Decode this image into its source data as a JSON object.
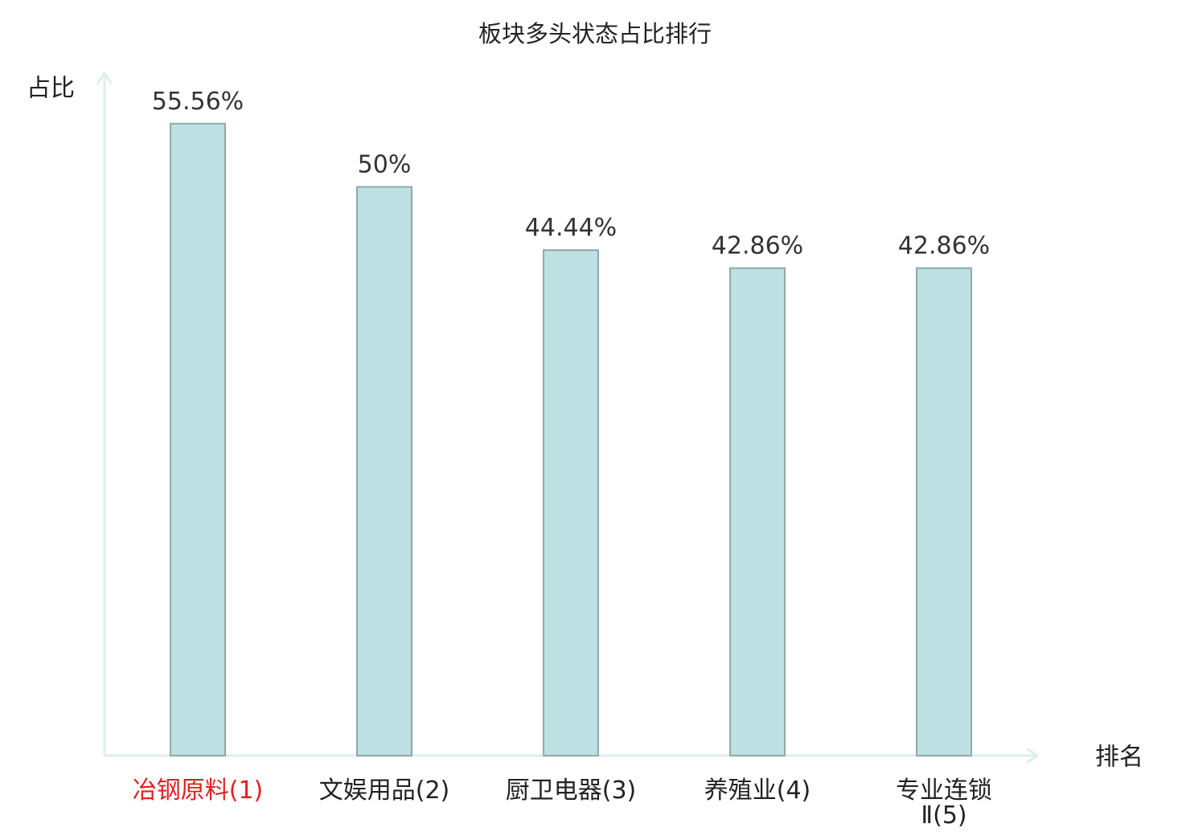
{
  "chart_data": {
    "type": "bar",
    "title": "板块多头状态占比排行",
    "xlabel": "排名",
    "ylabel": "占比",
    "categories": [
      "冶钢原料(1)",
      "文娱用品(2)",
      "厨卫电器(3)",
      "养殖业(4)",
      "专业连锁Ⅱ(5)"
    ],
    "values": [
      55.56,
      50,
      44.44,
      42.86,
      42.86
    ],
    "data_labels": [
      "55.56%",
      "50%",
      "44.44%",
      "42.86%",
      "42.86%"
    ],
    "ylim": [
      0,
      60
    ],
    "grid": false,
    "legend": false,
    "category_label_colors": [
      "#e02020",
      "#222222",
      "#222222",
      "#222222",
      "#222222"
    ],
    "colors": {
      "bar_fill": "#bde0e2",
      "bar_stroke": "#8ea9a9",
      "axis": "#dcefeb",
      "text": "#222222",
      "highlight": "#e02020"
    }
  }
}
